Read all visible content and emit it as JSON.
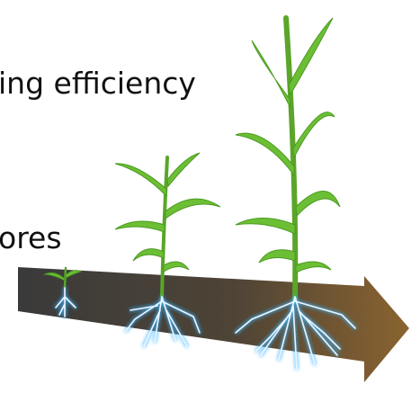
{
  "texts": {
    "line1": "ing efficiency",
    "line2": "ores"
  }
}
